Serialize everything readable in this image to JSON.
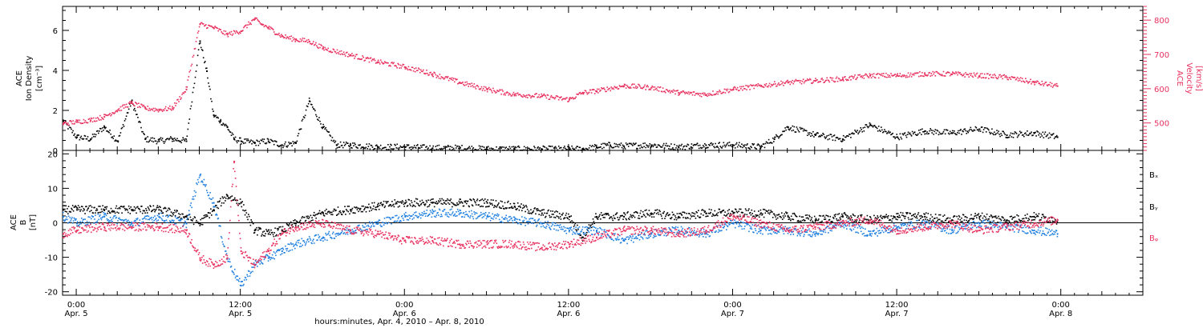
{
  "colors": {
    "density": "#000000",
    "velocity": "#e8315f",
    "bx": "#000000",
    "by": "#1f7fe0",
    "bz": "#e8315f"
  },
  "x_axis": {
    "title": "hours:minutes, Apr. 4, 2010 – Apr. 8, 2010",
    "ticks": [
      {
        "hour": 0,
        "time": "0:00",
        "date": "Apr. 5"
      },
      {
        "hour": 12,
        "time": "12:00",
        "date": "Apr. 5"
      },
      {
        "hour": 24,
        "time": "0:00",
        "date": "Apr. 6"
      },
      {
        "hour": 36,
        "time": "12:00",
        "date": "Apr. 6"
      },
      {
        "hour": 48,
        "time": "0:00",
        "date": "Apr. 7"
      },
      {
        "hour": 60,
        "time": "12:00",
        "date": "Apr. 7"
      },
      {
        "hour": 72,
        "time": "0:00",
        "date": "Apr. 8"
      }
    ]
  },
  "chart_data": [
    {
      "type": "scatter",
      "panel": "top",
      "xlim": [
        -1,
        78
      ],
      "left_axis": {
        "label_lines": [
          "ACE",
          "Ion Density",
          "[cm⁻³]"
        ],
        "ylim": [
          0,
          7.2
        ],
        "ticks": [
          0,
          2,
          4,
          6
        ]
      },
      "right_axis": {
        "label_lines": [
          "ACE",
          "Velocity",
          "[km/s]"
        ],
        "ylim": [
          420,
          840
        ],
        "ticks": [
          500,
          600,
          700,
          800
        ]
      },
      "series": [
        {
          "axis": "left",
          "x": [
            -1,
            0,
            1,
            2,
            3,
            4,
            5,
            6,
            7,
            8,
            9,
            9.5,
            10,
            10.5,
            11,
            11.5,
            12,
            13,
            14,
            15,
            16,
            17,
            18,
            19,
            20,
            22,
            24,
            26,
            28,
            30,
            32,
            34,
            36,
            37,
            38,
            39,
            40,
            42,
            44,
            46,
            48,
            50,
            51,
            52,
            54,
            56,
            58,
            60,
            62,
            64,
            66,
            68,
            70,
            71.7
          ],
          "values": [
            1.5,
            0.7,
            0.6,
            1.2,
            0.5,
            2.5,
            0.6,
            0.5,
            0.6,
            0.5,
            5.5,
            4.0,
            1.8,
            1.5,
            1.2,
            0.6,
            0.5,
            0.4,
            0.5,
            0.3,
            0.4,
            2.5,
            1.2,
            0.3,
            0.3,
            0.2,
            0.2,
            0.15,
            0.15,
            0.1,
            0.1,
            0.1,
            0.1,
            0.1,
            0.2,
            0.3,
            0.25,
            0.3,
            0.2,
            0.3,
            0.3,
            0.2,
            0.6,
            1.2,
            0.8,
            0.6,
            1.3,
            0.7,
            1.0,
            0.9,
            1.1,
            0.8,
            0.9,
            0.7
          ]
        },
        {
          "axis": "right",
          "x": [
            -1,
            0,
            1,
            2,
            3,
            4,
            5,
            6,
            7,
            8,
            9,
            10,
            11,
            12,
            13,
            13.5,
            14,
            15,
            16,
            17,
            18,
            20,
            22,
            24,
            26,
            28,
            30,
            32,
            34,
            36,
            37,
            38,
            40,
            42,
            44,
            46,
            48,
            50,
            52,
            54,
            56,
            58,
            60,
            62,
            64,
            66,
            68,
            70,
            71.7
          ],
          "values": [
            500,
            505,
            510,
            520,
            540,
            560,
            545,
            540,
            545,
            600,
            790,
            780,
            760,
            770,
            805,
            790,
            780,
            755,
            745,
            740,
            720,
            700,
            680,
            665,
            645,
            620,
            600,
            585,
            580,
            570,
            590,
            595,
            610,
            605,
            590,
            585,
            600,
            610,
            620,
            625,
            630,
            640,
            640,
            645,
            645,
            640,
            635,
            620,
            610
          ]
        }
      ]
    },
    {
      "type": "scatter",
      "panel": "bottom",
      "xlim": [
        -1,
        78
      ],
      "left_axis": {
        "label_lines": [
          "ACE",
          "B",
          "[nT]"
        ],
        "ylim": [
          -21,
          21
        ],
        "ticks": [
          -20,
          -10,
          0,
          10,
          20
        ]
      },
      "series": [
        {
          "name": "Bₓ",
          "x": [
            -1,
            0,
            2,
            4,
            6,
            8,
            9,
            10,
            11,
            12,
            13,
            14,
            15,
            16,
            18,
            20,
            22,
            24,
            26,
            28,
            30,
            32,
            34,
            36,
            37,
            38,
            40,
            42,
            44,
            46,
            48,
            50,
            52,
            54,
            56,
            58,
            60,
            62,
            64,
            66,
            68,
            70,
            71.7
          ],
          "values": [
            4,
            4,
            4,
            4,
            4,
            2,
            0,
            4,
            8,
            6,
            -2,
            -3,
            -2,
            0,
            3,
            4,
            5,
            6,
            6,
            6,
            6,
            5,
            3,
            2,
            -4,
            2,
            2,
            3,
            2,
            3,
            3,
            3,
            2,
            1,
            2,
            1,
            2,
            2,
            1,
            2,
            1,
            2,
            1
          ]
        },
        {
          "name": "Bᵧ",
          "x": [
            -1,
            0,
            2,
            4,
            6,
            8,
            9,
            10,
            11,
            12,
            13,
            14,
            15,
            16,
            18,
            20,
            22,
            24,
            26,
            28,
            30,
            32,
            34,
            36,
            38,
            40,
            42,
            44,
            46,
            48,
            50,
            52,
            54,
            56,
            58,
            60,
            62,
            64,
            66,
            68,
            70,
            71.7
          ],
          "values": [
            2,
            0,
            2,
            0,
            2,
            0,
            14,
            6,
            -10,
            -18,
            -12,
            -10,
            -8,
            -6,
            -4,
            -2,
            0,
            2,
            3,
            3,
            2,
            1,
            0,
            -2,
            -2,
            -5,
            -3,
            -2,
            -3,
            0,
            -2,
            -2,
            -3,
            0,
            -3,
            -1,
            0,
            -2,
            0,
            -1,
            -2,
            -3
          ]
        },
        {
          "name": "Bᵩ",
          "x": [
            -1,
            0,
            2,
            4,
            6,
            8,
            9,
            10,
            11,
            11.5,
            12,
            13,
            14,
            15,
            16,
            18,
            20,
            22,
            24,
            26,
            28,
            30,
            32,
            34,
            36,
            38,
            40,
            42,
            44,
            46,
            48,
            50,
            52,
            54,
            56,
            58,
            60,
            62,
            64,
            66,
            68,
            70,
            71.7
          ],
          "values": [
            -3,
            -2,
            -1,
            -1,
            -1,
            -2,
            -10,
            -12,
            -10,
            18,
            -8,
            -12,
            -8,
            -3,
            -1,
            0,
            -2,
            -3,
            -5,
            -5,
            -6,
            -6,
            -6,
            -7,
            -6,
            -4,
            -2,
            -2,
            -3,
            -2,
            2,
            0,
            -2,
            -1,
            0,
            1,
            -2,
            -1,
            0,
            -2,
            -1,
            0,
            1
          ]
        }
      ]
    }
  ]
}
